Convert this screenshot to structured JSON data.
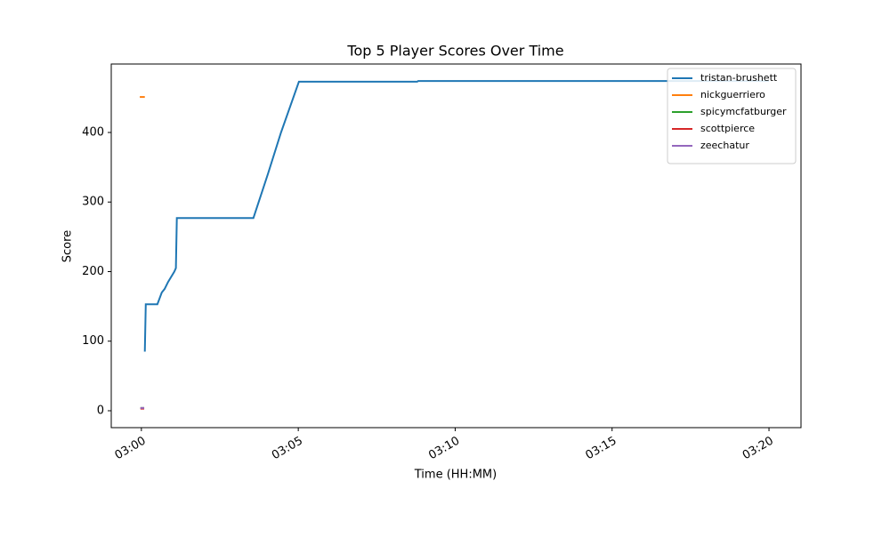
{
  "chart_data": {
    "type": "line",
    "title": "Top 5 Player Scores Over Time",
    "x_label": "Time (HH:MM)",
    "y_label": "Score",
    "xlim": [
      -0.96,
      21.02
    ],
    "xticks": [
      {
        "value": 0,
        "label": "03:00"
      },
      {
        "value": 5,
        "label": "03:05"
      },
      {
        "value": 10,
        "label": "03:10"
      },
      {
        "value": 15,
        "label": "03:15"
      },
      {
        "value": 20,
        "label": "03:20"
      }
    ],
    "ylim": [
      -24.3,
      498.4
    ],
    "yticks": [
      0,
      100,
      200,
      300,
      400
    ],
    "legend": "upper right",
    "series": [
      {
        "name": "tristan-brushett",
        "color": "#1f77b4",
        "x": [
          0.11,
          0.14,
          0.51,
          0.65,
          0.74,
          0.85,
          1.05,
          1.1,
          1.13,
          3.57,
          4.03,
          4.45,
          5.02,
          8.79,
          8.82,
          20.0
        ],
        "values": [
          85,
          153,
          153,
          170,
          175,
          185,
          200,
          205,
          277,
          277,
          340,
          400,
          473,
          473,
          474,
          474
        ]
      },
      {
        "name": "nickguerriero",
        "color": "#ff7f0e",
        "x": [
          -0.05,
          0.11
        ],
        "values": [
          451,
          451
        ]
      },
      {
        "name": "spicymcfatburger",
        "color": "#2ca02c",
        "x": [
          -0.03,
          0.09
        ],
        "values": [
          4,
          4
        ]
      },
      {
        "name": "scottpierce",
        "color": "#d62728",
        "x": [
          -0.03,
          0.09
        ],
        "values": [
          3,
          3
        ]
      },
      {
        "name": "zeechatur",
        "color": "#9467bd",
        "x": [
          -0.03,
          0.09
        ],
        "values": [
          4,
          4
        ]
      }
    ]
  }
}
